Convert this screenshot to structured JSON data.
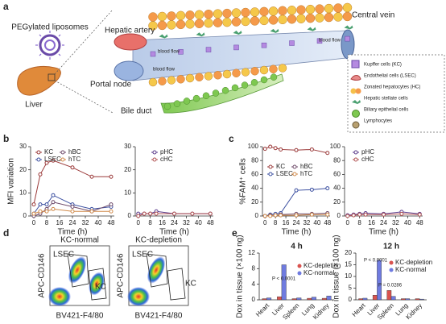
{
  "panel_labels": [
    "a",
    "b",
    "c",
    "d",
    "e"
  ],
  "diagram": {
    "liposome_label": "PEGylated liposomes",
    "organ_label": "Liver",
    "hepatic_artery": "Hepatic artery",
    "central_vein": "Central vein",
    "portal_node": "Portal node",
    "bile_duct": "Bile duct",
    "flow_labels": [
      "blood flow",
      "blood flow",
      "blood flow"
    ],
    "legend": [
      "Kupffer cells (KC)",
      "Endothelial cells (LSEC)",
      "Zonated hepatocytes (HC)",
      "Hepatic stellate cells",
      "Biliary epithelial cells",
      "Lymphocytes"
    ]
  },
  "flow_cytometry": {
    "x_label": "BV421-F4/80",
    "y_label": "APC-CD146",
    "panels": [
      {
        "title": "KC-normal",
        "gates": [
          "LSEC",
          "KC"
        ]
      },
      {
        "title": "KC-depletion",
        "gates": [
          "LSEC",
          "KC"
        ]
      }
    ]
  },
  "chart_data": [
    {
      "type": "line",
      "y_label": "MFI variation",
      "x_label": "Time (h)",
      "x": [
        0,
        4,
        8,
        12,
        24,
        36,
        48
      ],
      "xlim": [
        -2,
        50
      ],
      "xticks": [
        0,
        8,
        16,
        24,
        32,
        40,
        48
      ],
      "ylim": [
        0,
        30
      ],
      "yticks": [
        0,
        10,
        20,
        30
      ],
      "series": [
        {
          "name": "KC",
          "color": "#9b3a3a",
          "values": [
            5,
            18,
            23,
            24,
            21,
            17,
            17
          ]
        },
        {
          "name": "LSEC",
          "color": "#3b4fa0",
          "values": [
            1,
            5,
            5,
            9,
            5,
            3,
            4
          ]
        },
        {
          "name": "hBC",
          "color": "#6e4a6a",
          "values": [
            0,
            1,
            3,
            6,
            4,
            2,
            5
          ]
        },
        {
          "name": "hTC",
          "color": "#d08a4a",
          "values": [
            1,
            2,
            2,
            3,
            2,
            2,
            2
          ]
        }
      ]
    },
    {
      "type": "line",
      "x_label": "Time (h)",
      "x": [
        0,
        4,
        8,
        12,
        24,
        36,
        48
      ],
      "xlim": [
        -2,
        50
      ],
      "xticks": [
        0,
        8,
        16,
        24,
        32,
        40,
        48
      ],
      "ylim": [
        0,
        30
      ],
      "yticks": [
        0,
        10,
        20,
        30
      ],
      "series": [
        {
          "name": "pHC",
          "color": "#5a3a8a",
          "values": [
            1,
            1,
            1,
            2,
            1,
            1,
            1
          ]
        },
        {
          "name": "cHC",
          "color": "#b05050",
          "values": [
            0,
            1,
            1,
            1,
            1,
            1,
            1
          ]
        }
      ]
    },
    {
      "type": "line",
      "y_label": "%FAM⁺ cells",
      "x_label": "Time (h)",
      "x": [
        0,
        4,
        8,
        12,
        24,
        36,
        48
      ],
      "xlim": [
        -2,
        50
      ],
      "xticks": [
        0,
        8,
        16,
        24,
        32,
        40,
        48
      ],
      "ylim": [
        0,
        100
      ],
      "yticks": [
        0,
        20,
        40,
        60,
        80,
        100
      ],
      "series": [
        {
          "name": "KC",
          "color": "#9b3a3a",
          "values": [
            97,
            100,
            98,
            96,
            95,
            96,
            91
          ]
        },
        {
          "name": "LSEC",
          "color": "#3b4fa0",
          "values": [
            0,
            2,
            3,
            4,
            37,
            38,
            40
          ]
        },
        {
          "name": "hBC",
          "color": "#6e4a6a",
          "values": [
            0,
            1,
            1,
            2,
            3,
            3,
            4
          ]
        },
        {
          "name": "hTC",
          "color": "#d08a4a",
          "values": [
            0,
            0,
            1,
            1,
            1,
            2,
            2
          ]
        }
      ]
    },
    {
      "type": "line",
      "x_label": "Time (h)",
      "x": [
        0,
        4,
        8,
        12,
        24,
        36,
        48
      ],
      "xlim": [
        -2,
        50
      ],
      "xticks": [
        0,
        8,
        16,
        24,
        32,
        40,
        48
      ],
      "ylim": [
        0,
        100
      ],
      "yticks": [
        0,
        20,
        40,
        60,
        80,
        100
      ],
      "series": [
        {
          "name": "pHC",
          "color": "#5a3a8a",
          "values": [
            1,
            2,
            3,
            4,
            3,
            6,
            3
          ]
        },
        {
          "name": "cHC",
          "color": "#b05050",
          "values": [
            0,
            1,
            2,
            2,
            2,
            3,
            2
          ]
        }
      ]
    },
    {
      "type": "bar",
      "title": "4 h",
      "y_label": "Dox in tissue (×100 ng)",
      "categories": [
        "Heart",
        "Liver",
        "Spleen",
        "Lung",
        "Kidney"
      ],
      "ylim": [
        0,
        12
      ],
      "yticks": [
        0,
        4,
        8,
        12
      ],
      "series": [
        {
          "name": "KC-depletion",
          "color": "#d9534f",
          "values": [
            0.3,
            0.8,
            0.3,
            0.4,
            0.4
          ]
        },
        {
          "name": "KC-normal",
          "color": "#6f7be0",
          "values": [
            0.5,
            9,
            0.5,
            0.7,
            1
          ]
        }
      ],
      "annotations": [
        "P < 0.0001"
      ]
    },
    {
      "type": "bar",
      "title": "12 h",
      "y_label": "Dox in tissue (×100 ng)",
      "categories": [
        "Heart",
        "Liver",
        "Spleen",
        "Lung",
        "Kidney"
      ],
      "ylim": [
        0,
        20
      ],
      "yticks": [
        0,
        5,
        10,
        15,
        20
      ],
      "series": [
        {
          "name": "KC-depletion",
          "color": "#d9534f",
          "values": [
            0.5,
            2,
            4,
            0.5,
            0.5
          ]
        },
        {
          "name": "KC-normal",
          "color": "#6f7be0",
          "values": [
            0.7,
            17,
            1.5,
            0.5,
            0.3
          ]
        }
      ],
      "annotations": [
        "P < 0.0001",
        "P = 0.0286"
      ]
    }
  ]
}
